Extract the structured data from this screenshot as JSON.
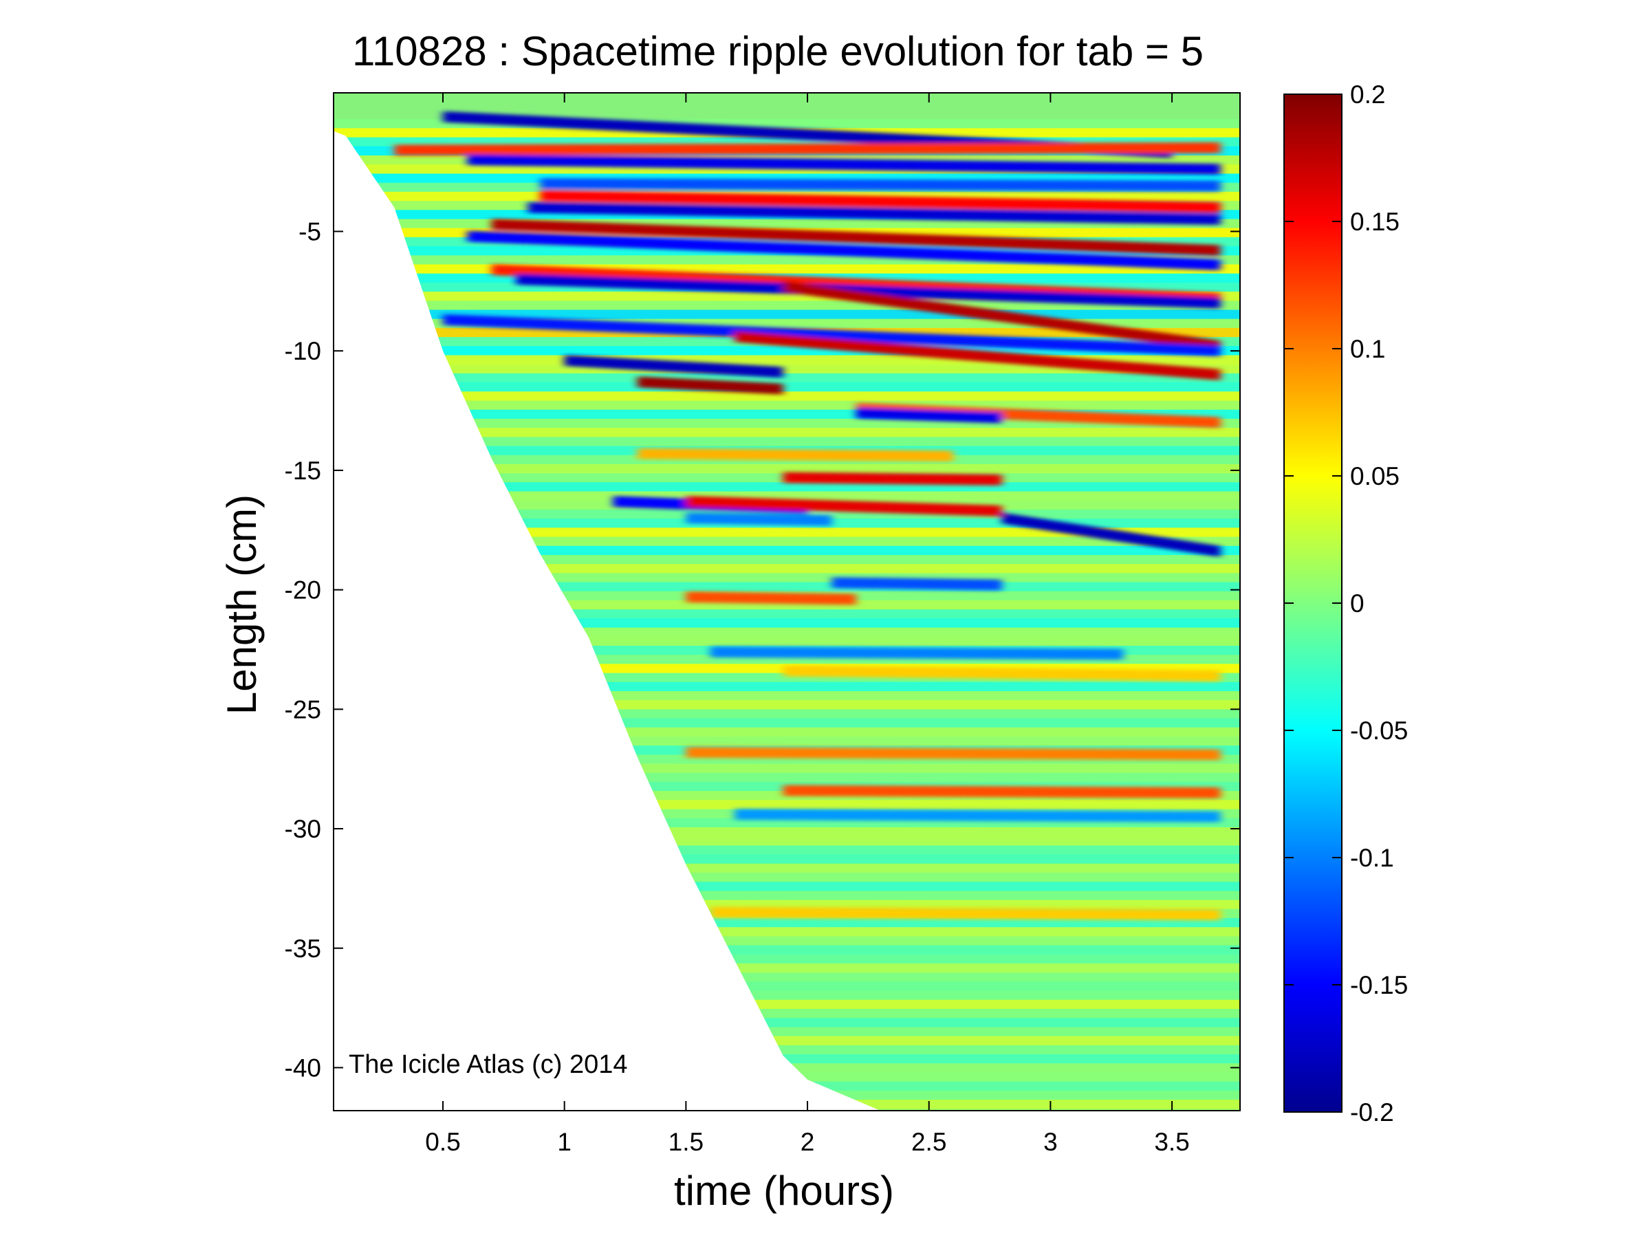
{
  "chart_data": {
    "type": "heatmap",
    "title": "110828 : Spacetime ripple evolution for tab = 5",
    "xlabel": "time (hours)",
    "ylabel": "Length (cm)",
    "xlim": [
      0.05,
      3.78
    ],
    "ylim": [
      -41.8,
      0.8
    ],
    "xticks": [
      0.5,
      1,
      1.5,
      2,
      2.5,
      3,
      3.5
    ],
    "xtick_labels": [
      "0.5",
      "1",
      "1.5",
      "2",
      "2.5",
      "3",
      "3.5"
    ],
    "yticks": [
      -5,
      -10,
      -15,
      -20,
      -25,
      -30,
      -35,
      -40
    ],
    "ytick_labels": [
      "-5",
      "-10",
      "-15",
      "-20",
      "-25",
      "-30",
      "-35",
      "-40"
    ],
    "colormap": "jet",
    "clim": [
      -0.2,
      0.2
    ],
    "colorbar_ticks": [
      0.2,
      0.15,
      0.1,
      0.05,
      0,
      -0.05,
      -0.1,
      -0.15,
      -0.2
    ],
    "colorbar_labels": [
      "0.2",
      "0.15",
      "0.1",
      "0.05",
      "0",
      "-0.05",
      "-0.1",
      "-0.15",
      "-0.2"
    ],
    "data_boundary": {
      "description_note": "",
      "time": [
        0.05,
        0.1,
        0.3,
        0.5,
        0.7,
        0.9,
        1.1,
        1.3,
        1.5,
        1.7,
        1.9,
        2.0,
        2.3
      ],
      "tip_length": [
        -0.8,
        -1.0,
        -4.0,
        -10.0,
        -14.5,
        -18.5,
        -22.0,
        -27.0,
        -31.5,
        -35.5,
        -39.5,
        -40.5,
        -41.8
      ]
    },
    "ripple_bands": [
      {
        "y0": -0.2,
        "y1": -1.7,
        "t0": 0.5,
        "t1": 3.5,
        "value": -0.18
      },
      {
        "y0": -1.6,
        "y1": -1.5,
        "t0": 0.3,
        "t1": 3.7,
        "value": 0.13
      },
      {
        "y0": -2.0,
        "y1": -2.4,
        "t0": 0.6,
        "t1": 3.7,
        "value": -0.16
      },
      {
        "y0": -3.0,
        "y1": -3.1,
        "t0": 0.9,
        "t1": 3.7,
        "value": -0.12
      },
      {
        "y0": -3.5,
        "y1": -4.0,
        "t0": 0.9,
        "t1": 3.7,
        "value": 0.15
      },
      {
        "y0": -4.0,
        "y1": -4.5,
        "t0": 0.85,
        "t1": 3.7,
        "value": -0.17
      },
      {
        "y0": -4.7,
        "y1": -5.8,
        "t0": 0.7,
        "t1": 3.7,
        "value": 0.18
      },
      {
        "y0": -5.2,
        "y1": -6.4,
        "t0": 0.6,
        "t1": 3.7,
        "value": -0.15
      },
      {
        "y0": -6.6,
        "y1": -7.8,
        "t0": 0.7,
        "t1": 3.7,
        "value": 0.14
      },
      {
        "y0": -7.0,
        "y1": -8.0,
        "t0": 0.8,
        "t1": 3.7,
        "value": -0.17
      },
      {
        "y0": -7.3,
        "y1": -9.8,
        "t0": 1.9,
        "t1": 3.7,
        "value": 0.18
      },
      {
        "y0": -8.7,
        "y1": -10.0,
        "t0": 0.5,
        "t1": 3.7,
        "value": -0.14
      },
      {
        "y0": -9.4,
        "y1": -11.0,
        "t0": 1.7,
        "t1": 3.7,
        "value": 0.17
      },
      {
        "y0": -10.4,
        "y1": -10.9,
        "t0": 1.0,
        "t1": 1.9,
        "value": -0.18
      },
      {
        "y0": -11.3,
        "y1": -11.6,
        "t0": 1.3,
        "t1": 1.9,
        "value": 0.19
      },
      {
        "y0": -12.4,
        "y1": -13.0,
        "t0": 2.2,
        "t1": 3.7,
        "value": 0.12
      },
      {
        "y0": -12.6,
        "y1": -12.8,
        "t0": 2.2,
        "t1": 2.8,
        "value": -0.16
      },
      {
        "y0": -14.3,
        "y1": -14.4,
        "t0": 1.3,
        "t1": 2.6,
        "value": 0.08
      },
      {
        "y0": -15.3,
        "y1": -15.4,
        "t0": 1.9,
        "t1": 2.8,
        "value": 0.16
      },
      {
        "y0": -16.3,
        "y1": -16.6,
        "t0": 1.2,
        "t1": 2.0,
        "value": -0.15
      },
      {
        "y0": -16.3,
        "y1": -16.7,
        "t0": 1.5,
        "t1": 2.8,
        "value": 0.16
      },
      {
        "y0": -17.0,
        "y1": -18.4,
        "t0": 2.8,
        "t1": 3.7,
        "value": -0.18
      },
      {
        "y0": -17.0,
        "y1": -17.1,
        "t0": 1.5,
        "t1": 2.1,
        "value": -0.1
      },
      {
        "y0": -19.7,
        "y1": -19.8,
        "t0": 2.1,
        "t1": 2.8,
        "value": -0.12
      },
      {
        "y0": -20.3,
        "y1": -20.4,
        "t0": 1.5,
        "t1": 2.2,
        "value": 0.12
      },
      {
        "y0": -22.6,
        "y1": -22.7,
        "t0": 1.6,
        "t1": 3.3,
        "value": -0.1
      },
      {
        "y0": -23.4,
        "y1": -23.6,
        "t0": 1.9,
        "t1": 3.7,
        "value": 0.07
      },
      {
        "y0": -26.8,
        "y1": -26.9,
        "t0": 1.5,
        "t1": 3.7,
        "value": 0.1
      },
      {
        "y0": -28.4,
        "y1": -28.5,
        "t0": 1.9,
        "t1": 3.7,
        "value": 0.12
      },
      {
        "y0": -29.4,
        "y1": -29.5,
        "t0": 1.7,
        "t1": 3.7,
        "value": -0.09
      },
      {
        "y0": -33.5,
        "y1": -33.6,
        "t0": 1.6,
        "t1": 3.7,
        "value": 0.07
      }
    ]
  },
  "watermark": "The Icicle Atlas (c) 2014"
}
